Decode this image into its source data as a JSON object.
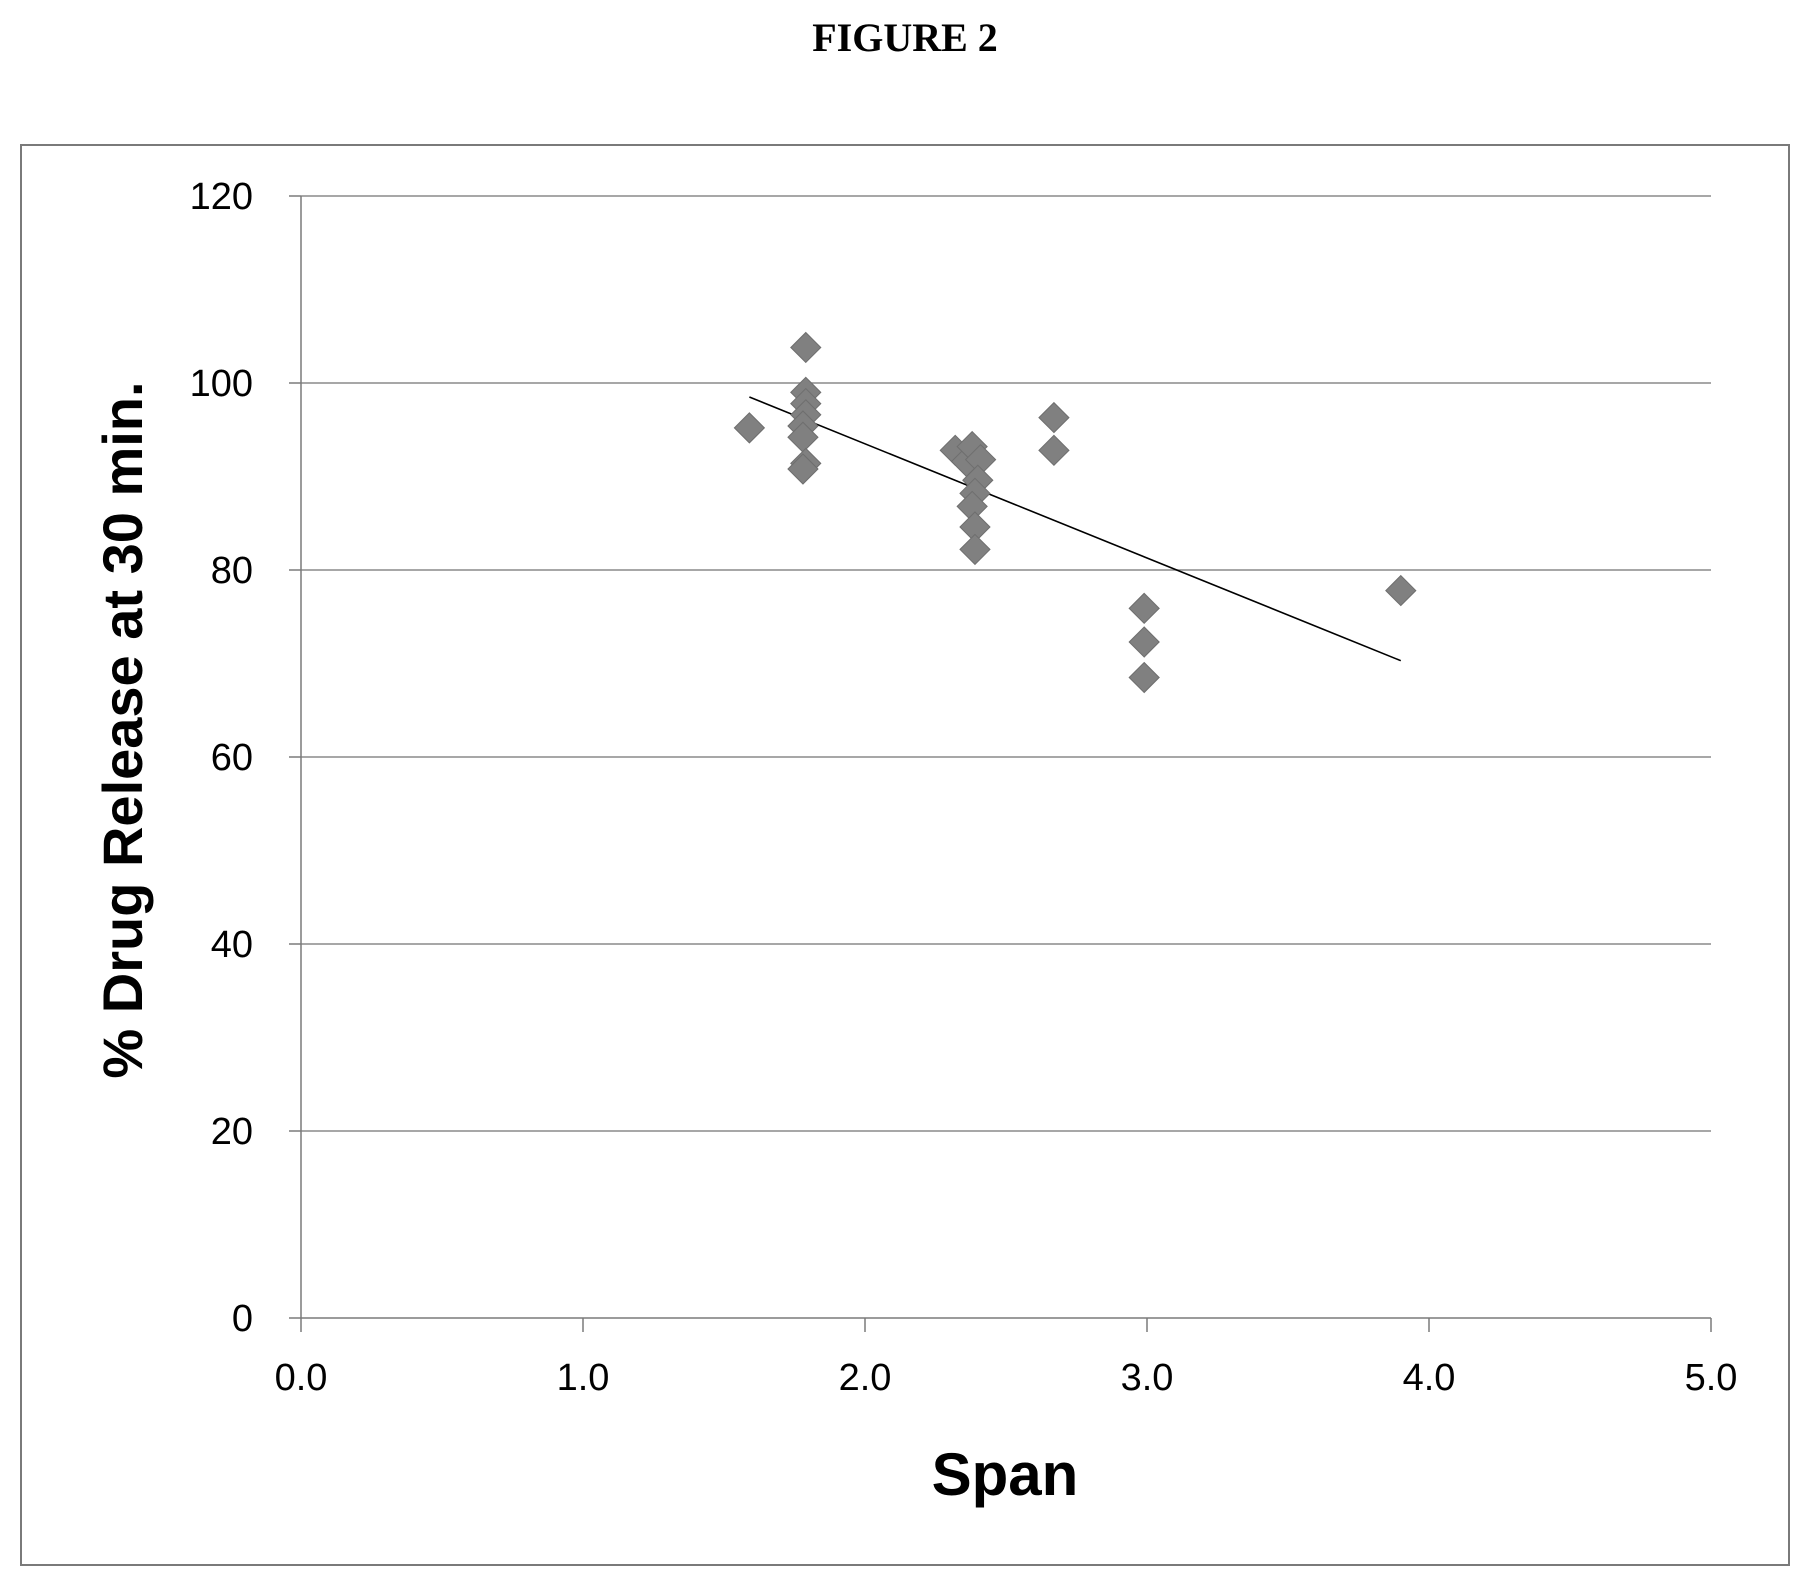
{
  "figure_caption": "FIGURE 2",
  "chart_data": {
    "type": "scatter",
    "xlabel": "Span",
    "ylabel": "% Drug Release at 30 min.",
    "xlim": [
      0.0,
      5.0
    ],
    "ylim": [
      0,
      120
    ],
    "x_ticks": [
      "0.0",
      "1.0",
      "2.0",
      "3.0",
      "4.0",
      "5.0"
    ],
    "y_ticks": [
      "0",
      "20",
      "40",
      "60",
      "80",
      "100",
      "120"
    ],
    "x_tick_values": [
      0,
      1,
      2,
      3,
      4,
      5
    ],
    "y_tick_values": [
      0,
      20,
      40,
      60,
      80,
      100,
      120
    ],
    "grid": {
      "horizontal": true,
      "vertical": false
    },
    "legend": "none",
    "series": [
      {
        "marker": "diamond",
        "points": [
          {
            "x": 1.59,
            "y": 95.2
          },
          {
            "x": 1.79,
            "y": 103.8
          },
          {
            "x": 1.79,
            "y": 99.0
          },
          {
            "x": 1.79,
            "y": 97.8
          },
          {
            "x": 1.79,
            "y": 96.6
          },
          {
            "x": 1.78,
            "y": 95.4
          },
          {
            "x": 1.78,
            "y": 94.2
          },
          {
            "x": 1.79,
            "y": 91.4
          },
          {
            "x": 1.78,
            "y": 90.8
          },
          {
            "x": 2.32,
            "y": 92.8
          },
          {
            "x": 2.36,
            "y": 91.6
          },
          {
            "x": 2.38,
            "y": 93.2
          },
          {
            "x": 2.41,
            "y": 91.8
          },
          {
            "x": 2.4,
            "y": 89.6
          },
          {
            "x": 2.39,
            "y": 88.2
          },
          {
            "x": 2.38,
            "y": 86.8
          },
          {
            "x": 2.39,
            "y": 84.6
          },
          {
            "x": 2.39,
            "y": 82.2
          },
          {
            "x": 2.67,
            "y": 96.3
          },
          {
            "x": 2.67,
            "y": 92.8
          },
          {
            "x": 2.99,
            "y": 75.9
          },
          {
            "x": 2.99,
            "y": 72.3
          },
          {
            "x": 2.99,
            "y": 68.5
          },
          {
            "x": 3.9,
            "y": 77.8
          }
        ]
      }
    ],
    "trendline": {
      "x1": 1.59,
      "y1": 98.5,
      "x2": 3.9,
      "y2": 70.3
    }
  },
  "colors": {
    "marker": "#808080",
    "gridline": "#8a8a8a",
    "axis": "#7a7a7a",
    "frame": "#7a7a7a",
    "trendline": "#000000",
    "text": "#000000"
  }
}
